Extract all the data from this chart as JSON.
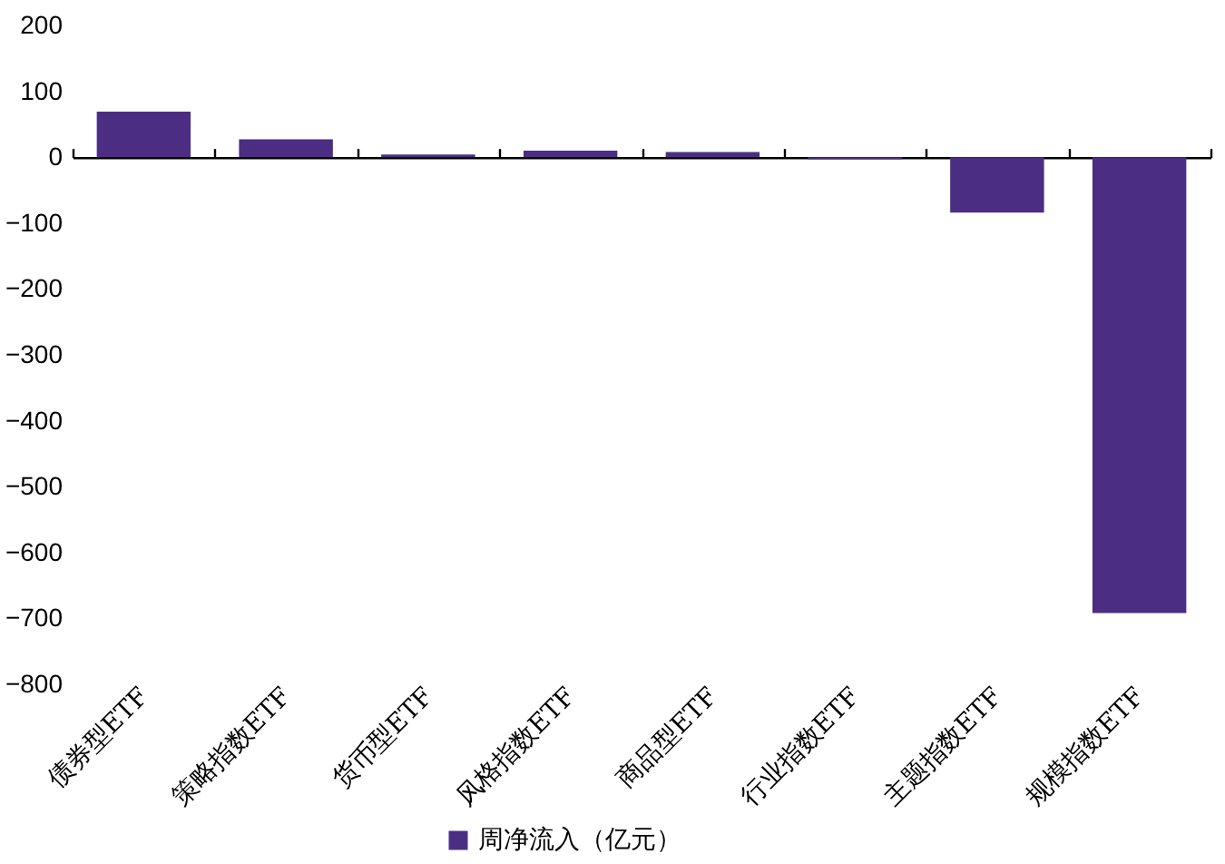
{
  "chart_data": {
    "type": "bar",
    "categories": [
      "债券型ETF",
      "策略指数ETF",
      "货币型ETF",
      "风格指数ETF",
      "商品型ETF",
      "行业指数ETF",
      "主题指数ETF",
      "规模指数ETF"
    ],
    "series": [
      {
        "name": "周净流入（亿元）",
        "color": "#4b2e83",
        "values": [
          69,
          27,
          4,
          10,
          8,
          -3,
          -84,
          -692
        ]
      }
    ],
    "ylim": [
      -800,
      200
    ],
    "yticks": [
      -800,
      -700,
      -600,
      -500,
      -400,
      -300,
      -200,
      -100,
      0,
      100,
      200
    ],
    "legend": "bottom"
  }
}
